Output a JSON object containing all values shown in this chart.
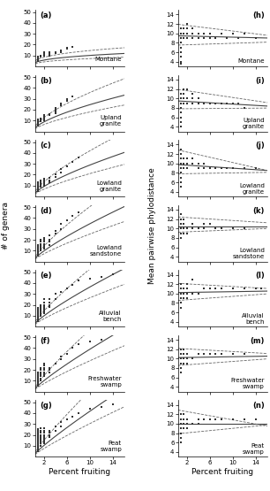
{
  "left_labels": [
    "Montane",
    "Upland\ngranite",
    "Lowland\ngranite",
    "Lowland\nsandstone",
    "Alluvial\nbench",
    "Freshwater\nswamp",
    "Peat\nswamp"
  ],
  "right_labels": [
    "Montane",
    "Upland\ngranite",
    "Lowland\ngranite",
    "Lowland\nsandstone",
    "Alluvial\nbench",
    "Freshwater\nswamp",
    "Peat\nswamp"
  ],
  "left_panel_ids": [
    "(a)",
    "(b)",
    "(c)",
    "(d)",
    "(e)",
    "(f)",
    "(g)"
  ],
  "right_panel_ids": [
    "(h)",
    "(i)",
    "(j)",
    "(k)",
    "(l)",
    "(m)",
    "(n)"
  ],
  "xlabel": "Percent fruiting",
  "left_ylabel": "# of genera",
  "right_ylabel": "Mean pairwise phylodistance",
  "left_xlim": [
    0.5,
    16
  ],
  "right_xlim": [
    0.5,
    16
  ],
  "left_ylim": [
    0,
    52
  ],
  "right_ylim": [
    3,
    15
  ],
  "left_yticks": [
    10,
    20,
    30,
    40,
    50
  ],
  "right_yticks": [
    4,
    6,
    8,
    10,
    12,
    14
  ],
  "left_xticks": [
    2,
    6,
    10,
    14
  ],
  "right_xticks": [
    2,
    6,
    10,
    14
  ],
  "scatter_color": "#333333",
  "line_color": "#444444",
  "ci_color": "#666666"
}
